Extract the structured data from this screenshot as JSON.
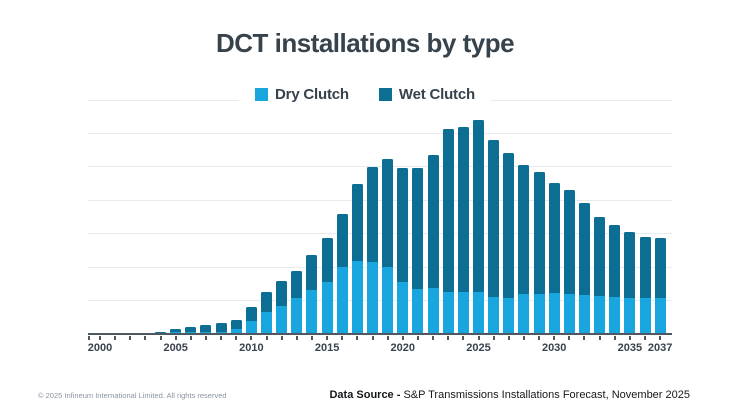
{
  "title": "DCT installations by type",
  "legend": {
    "items": [
      {
        "label": "Dry Clutch",
        "color": "#19A5DE"
      },
      {
        "label": "Wet Clutch",
        "color": "#0D6E93"
      }
    ],
    "position": "top-center"
  },
  "chart_data": {
    "type": "bar",
    "stacked": true,
    "title": "DCT installations by type",
    "x": [
      2000,
      2001,
      2002,
      2003,
      2004,
      2005,
      2006,
      2007,
      2008,
      2009,
      2010,
      2011,
      2012,
      2013,
      2014,
      2015,
      2016,
      2017,
      2018,
      2019,
      2020,
      2021,
      2022,
      2023,
      2024,
      2025,
      2026,
      2027,
      2028,
      2029,
      2030,
      2031,
      2032,
      2033,
      2034,
      2035,
      2036,
      2037
    ],
    "series": [
      {
        "name": "Dry Clutch",
        "color": "#19A5DE",
        "values": [
          0,
          0,
          0,
          0,
          0,
          0.1,
          0.1,
          0.1,
          0.2,
          0.6,
          1.8,
          3.1,
          4.0,
          5.3,
          6.5,
          7.7,
          9.8,
          10.7,
          10.6,
          9.8,
          7.7,
          6.6,
          6.7,
          6.2,
          6.1,
          6.1,
          5.4,
          5.3,
          5.9,
          5.9,
          6.0,
          5.9,
          5.7,
          5.5,
          5.4,
          5.3,
          5.2,
          5.2
        ]
      },
      {
        "name": "Wet Clutch",
        "color": "#0D6E93",
        "values": [
          0,
          0,
          0,
          0,
          0.1,
          0.5,
          0.8,
          1.1,
          1.3,
          1.4,
          2.1,
          3.0,
          3.8,
          4.0,
          5.2,
          6.5,
          8.0,
          11.6,
          14.2,
          16.2,
          17.0,
          18.1,
          20.0,
          24.3,
          24.7,
          25.8,
          23.4,
          21.6,
          19.3,
          18.2,
          16.4,
          15.5,
          13.7,
          11.9,
          10.8,
          9.8,
          9.1,
          9.0
        ]
      }
    ],
    "x_tick_labels": [
      "2000",
      "2005",
      "2010",
      "2015",
      "2020",
      "2025",
      "2030",
      "2035",
      "2037"
    ],
    "xlabel": "",
    "ylabel": "",
    "ylim": [
      0,
      35
    ],
    "y_gridline_interval": 5,
    "y_axis_labels_shown": false,
    "grid": "horizontal",
    "legend_position": "top-center"
  },
  "footer": {
    "copyright": "© 2025 Infineum International Limited. All rights reserved",
    "data_source_label": "Data Source - ",
    "data_source_text": "S&P Transmissions Installations Forecast, November 2025"
  },
  "colors": {
    "dry_clutch": "#19A5DE",
    "wet_clutch": "#0D6E93",
    "title_text": "#36424C",
    "axis_line": "#4E5861",
    "gridline": "#E8EBED",
    "footer_gray": "#8B95A1",
    "footer_black": "#15181B",
    "background": "#FFFFFF"
  }
}
